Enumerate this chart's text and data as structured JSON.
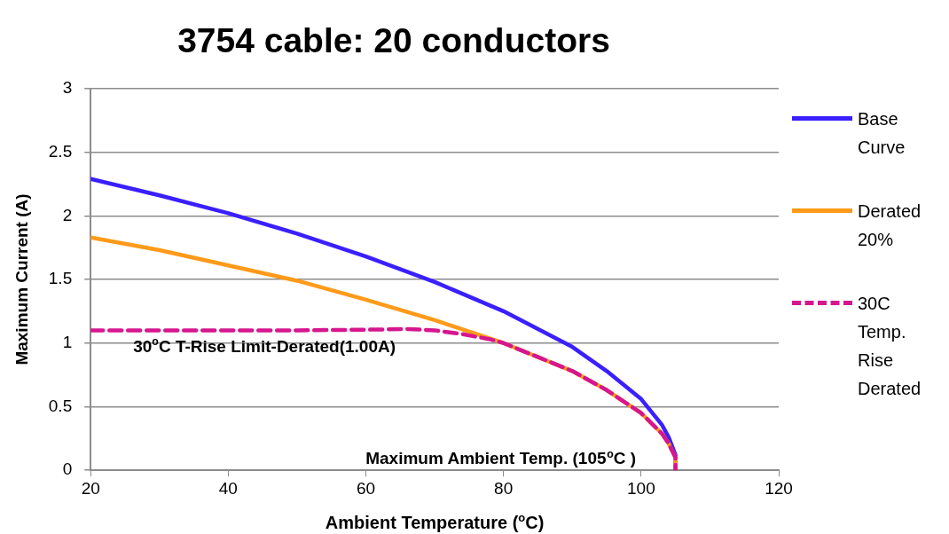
{
  "chart_data": {
    "type": "line",
    "title": "3754 cable: 20 conductors",
    "xlabel": "Ambient Temperature ($^{o}$C)",
    "ylabel": "Maximum Current (A)",
    "xlim": [
      20,
      120
    ],
    "xticks": [
      20,
      40,
      60,
      80,
      100,
      120
    ],
    "ylim": [
      0,
      3
    ],
    "yticks": [
      0,
      0.5,
      1,
      1.5,
      2,
      2.5,
      3
    ],
    "grid": "y",
    "legend": "right",
    "marker": "none",
    "series": [
      {
        "name": "Base Curve",
        "color": "#3a1fff",
        "line_style": "solid",
        "x": [
          20,
          30,
          40,
          50,
          60,
          70,
          80,
          90,
          95,
          100,
          103,
          104,
          105,
          105
        ],
        "values": [
          2.29,
          2.16,
          2.02,
          1.86,
          1.68,
          1.48,
          1.25,
          0.97,
          0.78,
          0.56,
          0.36,
          0.26,
          0.12,
          0
        ]
      },
      {
        "name": "Derated 20%",
        "color": "#ff9a1a",
        "line_style": "solid",
        "x": [
          20,
          30,
          40,
          50,
          60,
          70,
          80,
          90,
          95,
          100,
          103,
          104,
          105,
          105
        ],
        "values": [
          1.83,
          1.73,
          1.61,
          1.49,
          1.34,
          1.18,
          1.0,
          0.78,
          0.63,
          0.45,
          0.29,
          0.21,
          0.1,
          0
        ]
      },
      {
        "name": "30C Temp. Rise Derated",
        "color": "#d6168f",
        "line_style": "dashed",
        "x": [
          20,
          30,
          40,
          50,
          60,
          66,
          70,
          74,
          78,
          80,
          90,
          95,
          100,
          103,
          104,
          105,
          105
        ],
        "values": [
          1.1,
          1.1,
          1.1,
          1.1,
          1.105,
          1.11,
          1.1,
          1.07,
          1.03,
          1.0,
          0.78,
          0.63,
          0.45,
          0.29,
          0.21,
          0.1,
          0
        ]
      }
    ],
    "annotations": [
      "30$^{o}$C T-Rise Limit-Derated(1.00A)",
      "Maximum Ambient Temp. (105$^{o}$C )"
    ]
  }
}
